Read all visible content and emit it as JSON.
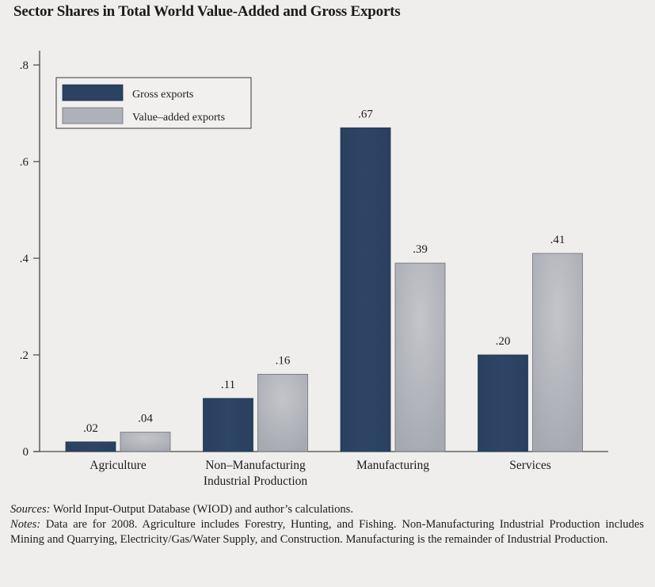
{
  "figure": {
    "title": "Sector Shares in Total World Value-Added and Gross Exports"
  },
  "chart_data": {
    "type": "bar",
    "title": "Sector Shares in Total World Value-Added and Gross Exports",
    "xlabel": "",
    "ylabel": "",
    "ylim": [
      0,
      0.8
    ],
    "yticks": [
      0,
      0.2,
      0.4,
      0.6,
      0.8
    ],
    "ytick_labels": [
      "0",
      ".2",
      ".4",
      ".6",
      ".8"
    ],
    "grid": false,
    "legend_position": "top-left",
    "categories": [
      [
        "Agriculture"
      ],
      [
        "Non–Manufacturing",
        "Industrial Production"
      ],
      [
        "Manufacturing"
      ],
      [
        "Services"
      ]
    ],
    "series": [
      {
        "name": "Gross exports",
        "color": "#2b4262",
        "values": [
          0.02,
          0.11,
          0.67,
          0.2
        ],
        "labels": [
          ".02",
          ".11",
          ".67",
          ".20"
        ]
      },
      {
        "name": "Value–added exports",
        "color": "#b0b2b8",
        "values": [
          0.04,
          0.16,
          0.39,
          0.41
        ],
        "labels": [
          ".04",
          ".16",
          ".39",
          ".41"
        ]
      }
    ]
  },
  "notes": {
    "sources_label": "Sources:",
    "sources_text": " World Input-Output Database (WIOD) and author’s calculations.",
    "notes_label": "Notes:",
    "notes_text": " Data are for 2008. Agriculture includes Forestry, Hunting, and Fishing. Non-Manufacturing Industrial Production includes Mining and Quarrying, Electricity/Gas/Water Supply, and Construction. Manufacturing is the remainder of Industrial Production."
  }
}
